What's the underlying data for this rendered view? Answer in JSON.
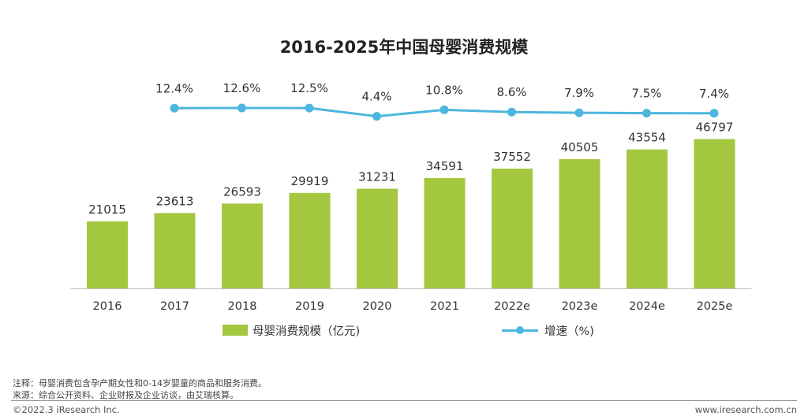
{
  "title": "2016-2025年中国母婴消费规模",
  "colors": {
    "bar": "#a4c740",
    "line": "#4db6de",
    "axis": "#bdbdbd"
  },
  "legend": {
    "bar_label": "母婴消费规模（亿元)",
    "line_label": "增速（%)"
  },
  "chart_data": {
    "type": "bar+line",
    "title": "2016-2025年中国母婴消费规模",
    "categories": [
      "2016",
      "2017",
      "2018",
      "2019",
      "2020",
      "2021",
      "2022e",
      "2023e",
      "2024e",
      "2025e"
    ],
    "series": [
      {
        "name": "母婴消费规模（亿元)",
        "type": "bar",
        "values": [
          21015,
          23613,
          26593,
          29919,
          31231,
          34591,
          37552,
          40505,
          43554,
          46797
        ]
      },
      {
        "name": "增速（%)",
        "type": "line",
        "x": [
          "2017",
          "2018",
          "2019",
          "2020",
          "2021",
          "2022e",
          "2023e",
          "2024e",
          "2025e"
        ],
        "values": [
          12.4,
          12.6,
          12.5,
          4.4,
          10.8,
          8.6,
          7.9,
          7.5,
          7.4
        ],
        "labels": [
          "12.4%",
          "12.6%",
          "12.5%",
          "4.4%",
          "10.8%",
          "8.6%",
          "7.9%",
          "7.5%",
          "7.4%"
        ]
      }
    ],
    "legend_position": "bottom",
    "grid": false
  },
  "notes": {
    "note": "注释：母婴消费包含孕产期女性和0-14岁婴童的商品和服务消费。",
    "source": "来源：综合公开资料、企业财报及企业访谈，由艾瑞核算。"
  },
  "footer": {
    "copyright": "©2022.3 iResearch Inc.",
    "website": "www.iresearch.com.cn"
  }
}
